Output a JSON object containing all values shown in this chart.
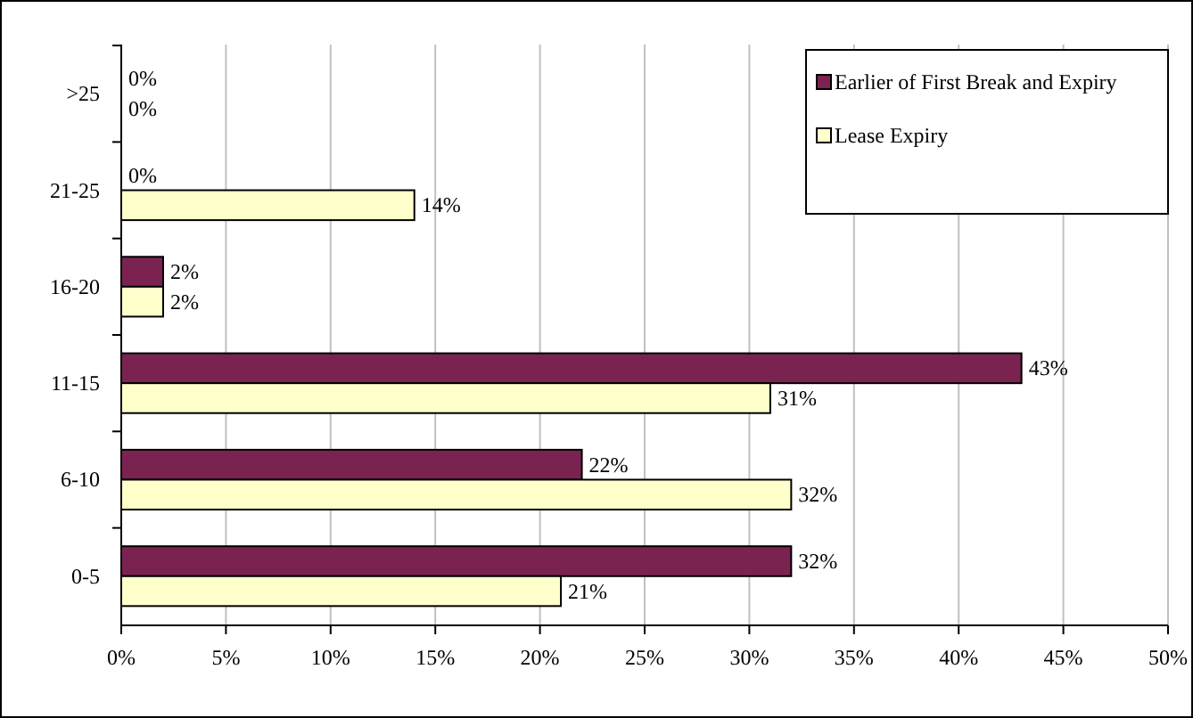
{
  "chart_data": {
    "type": "bar",
    "orientation": "horizontal",
    "categories": [
      ">25",
      "21-25",
      "16-20",
      "11-15",
      "6-10",
      "0-5"
    ],
    "series": [
      {
        "name": "Earlier of First Break and Expiry",
        "color": "#7b2350",
        "values": [
          0,
          0,
          2,
          43,
          22,
          32
        ],
        "value_labels": [
          "0%",
          "0%",
          "2%",
          "43%",
          "22%",
          "32%"
        ]
      },
      {
        "name": "Lease Expiry",
        "color": "#ffffcc",
        "values": [
          0,
          14,
          2,
          31,
          32,
          21
        ],
        "value_labels": [
          "0%",
          "14%",
          "2%",
          "31%",
          "32%",
          "21%"
        ]
      }
    ],
    "xlim": [
      0,
      50
    ],
    "xticks": [
      {
        "value": 0,
        "label": "0%"
      },
      {
        "value": 5,
        "label": "5%"
      },
      {
        "value": 10,
        "label": "10%"
      },
      {
        "value": 15,
        "label": "15%"
      },
      {
        "value": 20,
        "label": "20%"
      },
      {
        "value": 25,
        "label": "25%"
      },
      {
        "value": 30,
        "label": "30%"
      },
      {
        "value": 35,
        "label": "35%"
      },
      {
        "value": 40,
        "label": "40%"
      },
      {
        "value": 45,
        "label": "45%"
      },
      {
        "value": 50,
        "label": "50%"
      }
    ],
    "grid": "x",
    "legend": "top right"
  }
}
